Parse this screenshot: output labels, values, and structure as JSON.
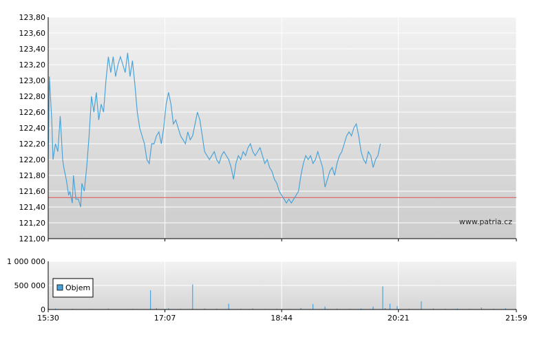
{
  "chart_data": [
    {
      "type": "line",
      "title": "",
      "xlabel": "",
      "ylabel": "",
      "x_ticks": [
        "15:30",
        "17:07",
        "18:44",
        "20:21",
        "21:59"
      ],
      "y_ticks": [
        "121,00",
        "121,20",
        "121,40",
        "121,60",
        "121,80",
        "122,00",
        "122,20",
        "122,40",
        "122,60",
        "122,80",
        "123,00",
        "123,20",
        "123,40",
        "123,60",
        "123,80"
      ],
      "ylim": [
        121.0,
        123.8
      ],
      "xlim_minutes_labels": [
        "15:30",
        "21:59"
      ],
      "reference_line": 121.52,
      "watermark": "www.patria.cz",
      "series": [
        {
          "points": [
            [
              "15:30",
              122.0
            ],
            [
              "15:31",
              123.05
            ],
            [
              "15:33",
              122.5
            ],
            [
              "15:34",
              122.0
            ],
            [
              "15:36",
              122.2
            ],
            [
              "15:38",
              122.1
            ],
            [
              "15:40",
              122.55
            ],
            [
              "15:42",
              122.0
            ],
            [
              "15:43",
              121.9
            ],
            [
              "15:45",
              121.75
            ],
            [
              "15:47",
              121.55
            ],
            [
              "15:48",
              121.6
            ],
            [
              "15:50",
              121.45
            ],
            [
              "15:51",
              121.8
            ],
            [
              "15:53",
              121.5
            ],
            [
              "15:55",
              121.5
            ],
            [
              "15:57",
              121.4
            ],
            [
              "15:58",
              121.7
            ],
            [
              "16:00",
              121.6
            ],
            [
              "16:02",
              121.9
            ],
            [
              "16:04",
              122.3
            ],
            [
              "16:06",
              122.8
            ],
            [
              "16:08",
              122.6
            ],
            [
              "16:10",
              122.85
            ],
            [
              "16:12",
              122.5
            ],
            [
              "16:14",
              122.7
            ],
            [
              "16:16",
              122.6
            ],
            [
              "16:18",
              123.0
            ],
            [
              "16:20",
              123.3
            ],
            [
              "16:22",
              123.1
            ],
            [
              "16:24",
              123.3
            ],
            [
              "16:26",
              123.05
            ],
            [
              "16:28",
              123.2
            ],
            [
              "16:30",
              123.3
            ],
            [
              "16:32",
              123.2
            ],
            [
              "16:34",
              123.1
            ],
            [
              "16:36",
              123.35
            ],
            [
              "16:38",
              123.05
            ],
            [
              "16:40",
              123.25
            ],
            [
              "16:42",
              122.95
            ],
            [
              "16:44",
              122.6
            ],
            [
              "16:46",
              122.4
            ],
            [
              "16:48",
              122.3
            ],
            [
              "16:50",
              122.2
            ],
            [
              "16:52",
              122.0
            ],
            [
              "16:54",
              121.95
            ],
            [
              "16:56",
              122.2
            ],
            [
              "16:58",
              122.2
            ],
            [
              "17:00",
              122.3
            ],
            [
              "17:02",
              122.35
            ],
            [
              "17:04",
              122.2
            ],
            [
              "17:06",
              122.4
            ],
            [
              "17:08",
              122.7
            ],
            [
              "17:10",
              122.85
            ],
            [
              "17:12",
              122.7
            ],
            [
              "17:14",
              122.45
            ],
            [
              "17:16",
              122.5
            ],
            [
              "17:18",
              122.4
            ],
            [
              "17:20",
              122.3
            ],
            [
              "17:22",
              122.25
            ],
            [
              "17:24",
              122.2
            ],
            [
              "17:26",
              122.35
            ],
            [
              "17:28",
              122.25
            ],
            [
              "17:30",
              122.3
            ],
            [
              "17:32",
              122.45
            ],
            [
              "17:34",
              122.6
            ],
            [
              "17:36",
              122.5
            ],
            [
              "17:38",
              122.3
            ],
            [
              "17:40",
              122.1
            ],
            [
              "17:42",
              122.05
            ],
            [
              "17:44",
              122.0
            ],
            [
              "17:46",
              122.05
            ],
            [
              "17:48",
              122.1
            ],
            [
              "17:50",
              122.0
            ],
            [
              "17:52",
              121.95
            ],
            [
              "17:54",
              122.05
            ],
            [
              "17:56",
              122.1
            ],
            [
              "17:58",
              122.05
            ],
            [
              "18:00",
              122.0
            ],
            [
              "18:02",
              121.9
            ],
            [
              "18:04",
              121.75
            ],
            [
              "18:06",
              121.95
            ],
            [
              "18:08",
              122.05
            ],
            [
              "18:10",
              122.0
            ],
            [
              "18:12",
              122.1
            ],
            [
              "18:14",
              122.05
            ],
            [
              "18:16",
              122.15
            ],
            [
              "18:18",
              122.2
            ],
            [
              "18:20",
              122.1
            ],
            [
              "18:22",
              122.05
            ],
            [
              "18:24",
              122.1
            ],
            [
              "18:26",
              122.15
            ],
            [
              "18:28",
              122.05
            ],
            [
              "18:30",
              121.95
            ],
            [
              "18:32",
              122.0
            ],
            [
              "18:34",
              121.9
            ],
            [
              "18:36",
              121.85
            ],
            [
              "18:38",
              121.75
            ],
            [
              "18:40",
              121.7
            ],
            [
              "18:42",
              121.6
            ],
            [
              "18:44",
              121.55
            ],
            [
              "18:46",
              121.5
            ],
            [
              "18:48",
              121.45
            ],
            [
              "18:50",
              121.5
            ],
            [
              "18:52",
              121.45
            ],
            [
              "18:54",
              121.5
            ],
            [
              "18:56",
              121.55
            ],
            [
              "18:58",
              121.6
            ],
            [
              "19:00",
              121.8
            ],
            [
              "19:02",
              121.95
            ],
            [
              "19:04",
              122.05
            ],
            [
              "19:06",
              122.0
            ],
            [
              "19:08",
              122.05
            ],
            [
              "19:10",
              121.95
            ],
            [
              "19:12",
              122.0
            ],
            [
              "19:14",
              122.1
            ],
            [
              "19:16",
              122.0
            ],
            [
              "19:18",
              121.9
            ],
            [
              "19:20",
              121.65
            ],
            [
              "19:22",
              121.75
            ],
            [
              "19:24",
              121.85
            ],
            [
              "19:26",
              121.9
            ],
            [
              "19:28",
              121.8
            ],
            [
              "19:30",
              121.95
            ],
            [
              "19:32",
              122.05
            ],
            [
              "19:34",
              122.1
            ],
            [
              "19:36",
              122.2
            ],
            [
              "19:38",
              122.3
            ],
            [
              "19:40",
              122.35
            ],
            [
              "19:42",
              122.3
            ],
            [
              "19:44",
              122.4
            ],
            [
              "19:46",
              122.45
            ],
            [
              "19:48",
              122.3
            ],
            [
              "19:50",
              122.1
            ],
            [
              "19:52",
              122.0
            ],
            [
              "19:54",
              121.95
            ],
            [
              "19:56",
              122.1
            ],
            [
              "19:58",
              122.05
            ],
            [
              "20:00",
              121.9
            ],
            [
              "20:02",
              122.0
            ],
            [
              "20:04",
              122.05
            ],
            [
              "20:06",
              122.2
            ]
          ]
        }
      ]
    },
    {
      "type": "bar",
      "title": "",
      "xlabel": "",
      "ylabel": "",
      "y_ticks": [
        "0",
        "500 000",
        "1 000 000"
      ],
      "ylim": [
        0,
        1000000
      ],
      "legend": {
        "label": "Objem",
        "position": "bottom-left"
      },
      "series": [
        {
          "name": "Objem",
          "points": [
            [
              "15:30",
              40000
            ],
            [
              "15:36",
              20000
            ],
            [
              "15:50",
              15000
            ],
            [
              "16:05",
              10000
            ],
            [
              "16:20",
              18000
            ],
            [
              "16:40",
              12000
            ],
            [
              "16:55",
              400000
            ],
            [
              "17:00",
              30000
            ],
            [
              "17:10",
              25000
            ],
            [
              "17:20",
              15000
            ],
            [
              "17:30",
              520000
            ],
            [
              "17:40",
              20000
            ],
            [
              "17:50",
              15000
            ],
            [
              "18:00",
              120000
            ],
            [
              "18:10",
              15000
            ],
            [
              "18:20",
              20000
            ],
            [
              "18:30",
              10000
            ],
            [
              "18:40",
              15000
            ],
            [
              "18:50",
              10000
            ],
            [
              "19:00",
              30000
            ],
            [
              "19:10",
              110000
            ],
            [
              "19:20",
              60000
            ],
            [
              "19:30",
              18000
            ],
            [
              "19:40",
              12000
            ],
            [
              "19:50",
              20000
            ],
            [
              "20:00",
              60000
            ],
            [
              "20:08",
              480000
            ],
            [
              "20:10",
              30000
            ],
            [
              "20:14",
              120000
            ],
            [
              "20:20",
              70000
            ],
            [
              "20:30",
              15000
            ],
            [
              "20:40",
              170000
            ],
            [
              "20:50",
              20000
            ],
            [
              "21:00",
              15000
            ],
            [
              "21:10",
              20000
            ],
            [
              "21:20",
              12000
            ],
            [
              "21:30",
              40000
            ],
            [
              "21:40",
              15000
            ],
            [
              "21:50",
              25000
            ],
            [
              "21:58",
              12000
            ]
          ]
        }
      ]
    }
  ]
}
